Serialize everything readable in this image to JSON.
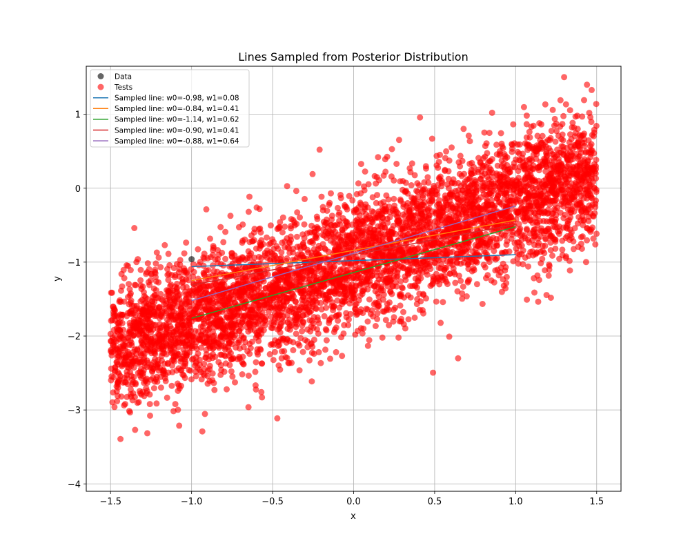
{
  "chart_data": {
    "type": "scatter",
    "title": "Lines Sampled from Posterior Distribution",
    "xlabel": "x",
    "ylabel": "y",
    "xlim": [
      -1.65,
      1.65
    ],
    "ylim": [
      -4.1,
      1.65
    ],
    "xticks": [
      -1.5,
      -1.0,
      -0.5,
      0.0,
      0.5,
      1.0,
      1.5
    ],
    "xtick_labels": [
      "−1.5",
      "−1.0",
      "−0.5",
      "0.0",
      "0.5",
      "1.0",
      "1.5"
    ],
    "yticks": [
      -4,
      -3,
      -2,
      -1,
      0,
      1
    ],
    "ytick_labels": [
      "−4",
      "−3",
      "−2",
      "−1",
      "0",
      "1"
    ],
    "grid": true,
    "legend_position": "top-left",
    "data_points": {
      "name": "Data",
      "color": "#000000",
      "points": [
        [
          -1.0,
          -0.96
        ]
      ]
    },
    "tests": {
      "name": "Tests",
      "color": "#ff0000",
      "approx_count": 5000,
      "x_range": [
        -1.5,
        1.5
      ],
      "trend": {
        "intercept": -1.0,
        "slope": 0.8
      },
      "noise_sd": 0.45
    },
    "lines": [
      {
        "name": "Sampled line: w0=-0.98, w1=0.08",
        "color": "#1f77b4",
        "w0": -0.98,
        "w1": 0.08,
        "x_range": [
          -1.0,
          1.0
        ]
      },
      {
        "name": "Sampled line: w0=-0.84, w1=0.41",
        "color": "#ff7f0e",
        "w0": -0.84,
        "w1": 0.41,
        "x_range": [
          -1.0,
          1.0
        ]
      },
      {
        "name": "Sampled line: w0=-1.14, w1=0.62",
        "color": "#2ca02c",
        "w0": -1.14,
        "w1": 0.62,
        "x_range": [
          -1.0,
          1.0
        ]
      },
      {
        "name": "Sampled line: w0=-0.90, w1=0.41",
        "color": "#d62728",
        "w0": -0.9,
        "w1": 0.41,
        "x_range": [
          -1.0,
          1.0
        ]
      },
      {
        "name": "Sampled line: w0=-0.88, w1=0.64",
        "color": "#9467bd",
        "w0": -0.88,
        "w1": 0.64,
        "x_range": [
          -1.0,
          1.0
        ]
      }
    ]
  }
}
